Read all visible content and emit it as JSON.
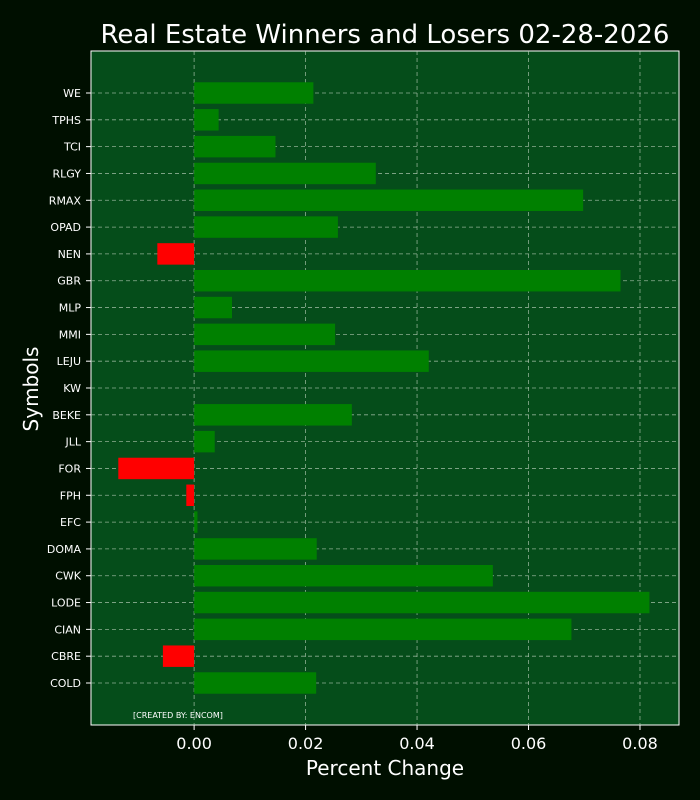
{
  "chart_data": {
    "type": "bar",
    "orientation": "horizontal",
    "title": "Real Estate Winners and Losers 02-28-2026",
    "xlabel": "Percent Change",
    "ylabel": "Symbols",
    "xlim": [
      -0.0185,
      0.087
    ],
    "xticks": [
      0.0,
      0.02,
      0.04,
      0.06,
      0.08
    ],
    "xtick_labels": [
      "0.00",
      "0.02",
      "0.04",
      "0.06",
      "0.08"
    ],
    "grid": true,
    "categories": [
      "COLD",
      "CBRE",
      "CIAN",
      "LODE",
      "CWK",
      "DOMA",
      "EFC",
      "FPH",
      "FOR",
      "JLL",
      "BEKE",
      "KW",
      "LEJU",
      "MMI",
      "MLP",
      "GBR",
      "NEN",
      "OPAD",
      "RMAX",
      "RLGY",
      "TCI",
      "TPHS",
      "WE"
    ],
    "values": [
      0.0219,
      -0.0056,
      0.0677,
      0.0817,
      0.0536,
      0.022,
      0.0006,
      -0.0014,
      -0.0136,
      0.0037,
      0.0283,
      0.0,
      0.0421,
      0.0253,
      0.0068,
      0.0765,
      -0.0066,
      0.0258,
      0.0698,
      0.0326,
      0.0146,
      0.0044,
      0.0214
    ],
    "colors": {
      "positive": "#008000",
      "negative": "#ff0000",
      "plot_background": "#054d1a",
      "figure_background": "#000f00"
    },
    "credit": "[CREATED BY: ENCOM]"
  }
}
